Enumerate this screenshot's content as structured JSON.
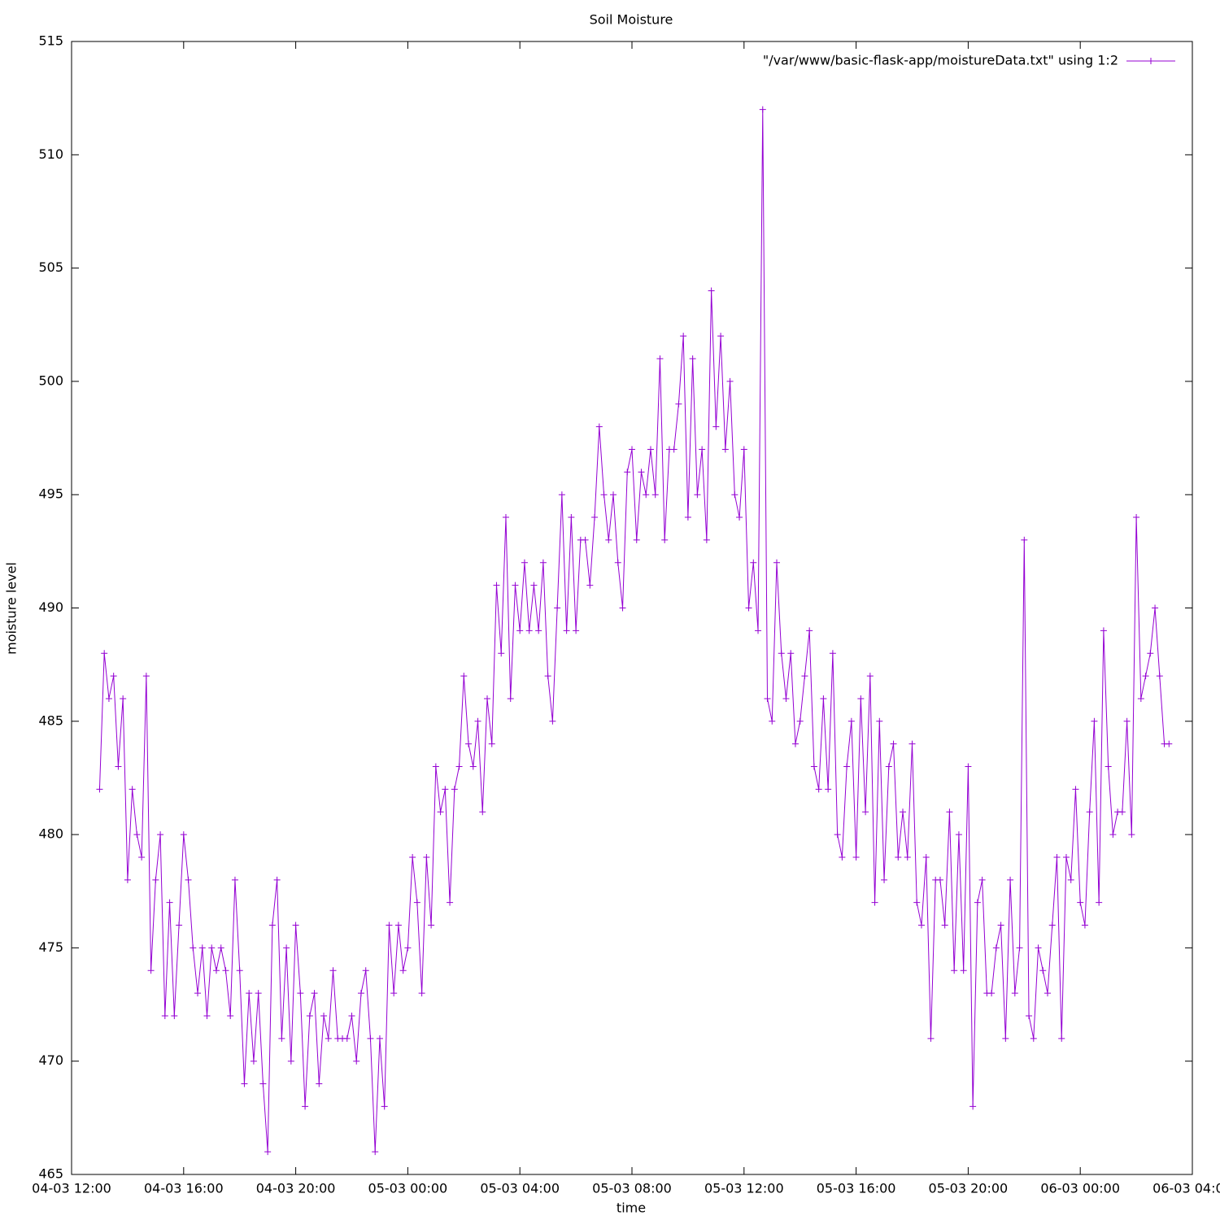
{
  "chart_data": {
    "type": "line",
    "title": "Soil Moisture",
    "x_label": "time",
    "y_label": "moisture level",
    "xlim": [
      "04-03 12:00",
      "06-03 04:00"
    ],
    "xticks": [
      "04-03 12:00",
      "04-03 16:00",
      "04-03 20:00",
      "05-03 00:00",
      "05-03 04:00",
      "05-03 08:00",
      "05-03 12:00",
      "05-03 16:00",
      "05-03 20:00",
      "06-03 00:00",
      "06-03 04:00"
    ],
    "ylim": [
      465,
      515
    ],
    "yticks": [
      465,
      470,
      475,
      480,
      485,
      490,
      495,
      500,
      505,
      510,
      515
    ],
    "grid": false,
    "legend": "top-right",
    "x": [
      "04-03 13:00",
      "04-03 13:10",
      "04-03 13:20",
      "04-03 13:30",
      "04-03 13:40",
      "04-03 13:50",
      "04-03 14:00",
      "04-03 14:10",
      "04-03 14:20",
      "04-03 14:30",
      "04-03 14:40",
      "04-03 14:50",
      "04-03 15:00",
      "04-03 15:10",
      "04-03 15:20",
      "04-03 15:30",
      "04-03 15:40",
      "04-03 15:50",
      "04-03 16:00",
      "04-03 16:10",
      "04-03 16:20",
      "04-03 16:30",
      "04-03 16:40",
      "04-03 16:50",
      "04-03 17:00",
      "04-03 17:10",
      "04-03 17:20",
      "04-03 17:30",
      "04-03 17:40",
      "04-03 17:50",
      "04-03 18:00",
      "04-03 18:10",
      "04-03 18:20",
      "04-03 18:30",
      "04-03 18:40",
      "04-03 18:50",
      "04-03 19:00",
      "04-03 19:10",
      "04-03 19:20",
      "04-03 19:30",
      "04-03 19:40",
      "04-03 19:50",
      "04-03 20:00",
      "04-03 20:10",
      "04-03 20:20",
      "04-03 20:30",
      "04-03 20:40",
      "04-03 20:50",
      "04-03 21:00",
      "04-03 21:10",
      "04-03 21:20",
      "04-03 21:30",
      "04-03 21:40",
      "04-03 21:50",
      "04-03 22:00",
      "04-03 22:10",
      "04-03 22:20",
      "04-03 22:30",
      "04-03 22:40",
      "04-03 22:50",
      "04-03 23:00",
      "04-03 23:10",
      "04-03 23:20",
      "04-03 23:30",
      "04-03 23:40",
      "04-03 23:50",
      "05-03 00:00",
      "05-03 00:10",
      "05-03 00:20",
      "05-03 00:30",
      "05-03 00:40",
      "05-03 00:50",
      "05-03 01:00",
      "05-03 01:10",
      "05-03 01:20",
      "05-03 01:30",
      "05-03 01:40",
      "05-03 01:50",
      "05-03 02:00",
      "05-03 02:10",
      "05-03 02:20",
      "05-03 02:30",
      "05-03 02:40",
      "05-03 02:50",
      "05-03 03:00",
      "05-03 03:10",
      "05-03 03:20",
      "05-03 03:30",
      "05-03 03:40",
      "05-03 03:50",
      "05-03 04:00",
      "05-03 04:10",
      "05-03 04:20",
      "05-03 04:30",
      "05-03 04:40",
      "05-03 04:50",
      "05-03 05:00",
      "05-03 05:10",
      "05-03 05:20",
      "05-03 05:30",
      "05-03 05:40",
      "05-03 05:50",
      "05-03 06:00",
      "05-03 06:10",
      "05-03 06:20",
      "05-03 06:30",
      "05-03 06:40",
      "05-03 06:50",
      "05-03 07:00",
      "05-03 07:10",
      "05-03 07:20",
      "05-03 07:30",
      "05-03 07:40",
      "05-03 07:50",
      "05-03 08:00",
      "05-03 08:10",
      "05-03 08:20",
      "05-03 08:30",
      "05-03 08:40",
      "05-03 08:50",
      "05-03 09:00",
      "05-03 09:10",
      "05-03 09:20",
      "05-03 09:30",
      "05-03 09:40",
      "05-03 09:50",
      "05-03 10:00",
      "05-03 10:10",
      "05-03 10:20",
      "05-03 10:30",
      "05-03 10:40",
      "05-03 10:50",
      "05-03 11:00",
      "05-03 11:10",
      "05-03 11:20",
      "05-03 11:30",
      "05-03 11:40",
      "05-03 11:50",
      "05-03 12:00",
      "05-03 12:10",
      "05-03 12:20",
      "05-03 12:30",
      "05-03 12:40",
      "05-03 12:50",
      "05-03 13:00",
      "05-03 13:10",
      "05-03 13:20",
      "05-03 13:30",
      "05-03 13:40",
      "05-03 13:50",
      "05-03 14:00",
      "05-03 14:10",
      "05-03 14:20",
      "05-03 14:30",
      "05-03 14:40",
      "05-03 14:50",
      "05-03 15:00",
      "05-03 15:10",
      "05-03 15:20",
      "05-03 15:30",
      "05-03 15:40",
      "05-03 15:50",
      "05-03 16:00",
      "05-03 16:10",
      "05-03 16:20",
      "05-03 16:30",
      "05-03 16:40",
      "05-03 16:50",
      "05-03 17:00",
      "05-03 17:10",
      "05-03 17:20",
      "05-03 17:30",
      "05-03 17:40",
      "05-03 17:50",
      "05-03 18:00",
      "05-03 18:10",
      "05-03 18:20",
      "05-03 18:30",
      "05-03 18:40",
      "05-03 18:50",
      "05-03 19:00",
      "05-03 19:10",
      "05-03 19:20",
      "05-03 19:30",
      "05-03 19:40",
      "05-03 19:50",
      "05-03 20:00",
      "05-03 20:10",
      "05-03 20:20",
      "05-03 20:30",
      "05-03 20:40",
      "05-03 20:50",
      "05-03 21:00",
      "05-03 21:10",
      "05-03 21:20",
      "05-03 21:30",
      "05-03 21:40",
      "05-03 21:50",
      "05-03 22:00",
      "05-03 22:10",
      "05-03 22:20",
      "05-03 22:30",
      "05-03 22:40",
      "05-03 22:50",
      "05-03 23:00",
      "05-03 23:10",
      "05-03 23:20",
      "05-03 23:30",
      "05-03 23:40",
      "05-03 23:50",
      "06-03 00:00",
      "06-03 00:10",
      "06-03 00:20",
      "06-03 00:30",
      "06-03 00:40",
      "06-03 00:50",
      "06-03 01:00",
      "06-03 01:10",
      "06-03 01:20",
      "06-03 01:30",
      "06-03 01:40",
      "06-03 01:50",
      "06-03 02:00",
      "06-03 02:10",
      "06-03 02:20",
      "06-03 02:30",
      "06-03 02:40",
      "06-03 02:50",
      "06-03 03:00",
      "06-03 03:10"
    ],
    "series": [
      {
        "name": "\"/var/www/basic-flask-app/moistureData.txt\" using 1:2",
        "color": "#9400d3",
        "values": [
          482,
          488,
          486,
          487,
          483,
          486,
          478,
          482,
          480,
          479,
          487,
          474,
          478,
          480,
          472,
          477,
          472,
          476,
          480,
          478,
          475,
          473,
          475,
          472,
          475,
          474,
          475,
          474,
          472,
          478,
          474,
          469,
          473,
          470,
          473,
          469,
          466,
          476,
          478,
          471,
          475,
          470,
          476,
          473,
          468,
          472,
          473,
          469,
          472,
          471,
          474,
          471,
          471,
          471,
          472,
          470,
          473,
          474,
          471,
          466,
          471,
          468,
          476,
          473,
          476,
          474,
          475,
          479,
          477,
          473,
          479,
          476,
          483,
          481,
          482,
          477,
          482,
          483,
          487,
          484,
          483,
          485,
          481,
          486,
          484,
          491,
          488,
          494,
          486,
          491,
          489,
          492,
          489,
          491,
          489,
          492,
          487,
          485,
          490,
          495,
          489,
          494,
          489,
          493,
          493,
          491,
          494,
          498,
          495,
          493,
          495,
          492,
          490,
          496,
          497,
          493,
          496,
          495,
          497,
          495,
          501,
          493,
          497,
          497,
          499,
          502,
          494,
          501,
          495,
          497,
          493,
          504,
          498,
          502,
          497,
          500,
          495,
          494,
          497,
          490,
          492,
          489,
          512,
          486,
          485,
          492,
          488,
          486,
          488,
          484,
          485,
          487,
          489,
          483,
          482,
          486,
          482,
          488,
          480,
          479,
          483,
          485,
          479,
          486,
          481,
          487,
          477,
          485,
          478,
          483,
          484,
          479,
          481,
          479,
          484,
          477,
          476,
          479,
          471,
          478,
          478,
          476,
          481,
          474,
          480,
          474,
          483,
          468,
          477,
          478,
          473,
          473,
          475,
          476,
          471,
          478,
          473,
          475,
          493,
          472,
          471,
          475,
          474,
          473,
          476,
          479,
          471,
          479,
          478,
          482,
          477,
          476,
          481,
          485,
          477,
          489,
          483,
          480,
          481,
          481,
          485,
          480,
          494,
          486,
          487,
          488,
          490,
          487,
          484,
          484
        ]
      }
    ]
  }
}
